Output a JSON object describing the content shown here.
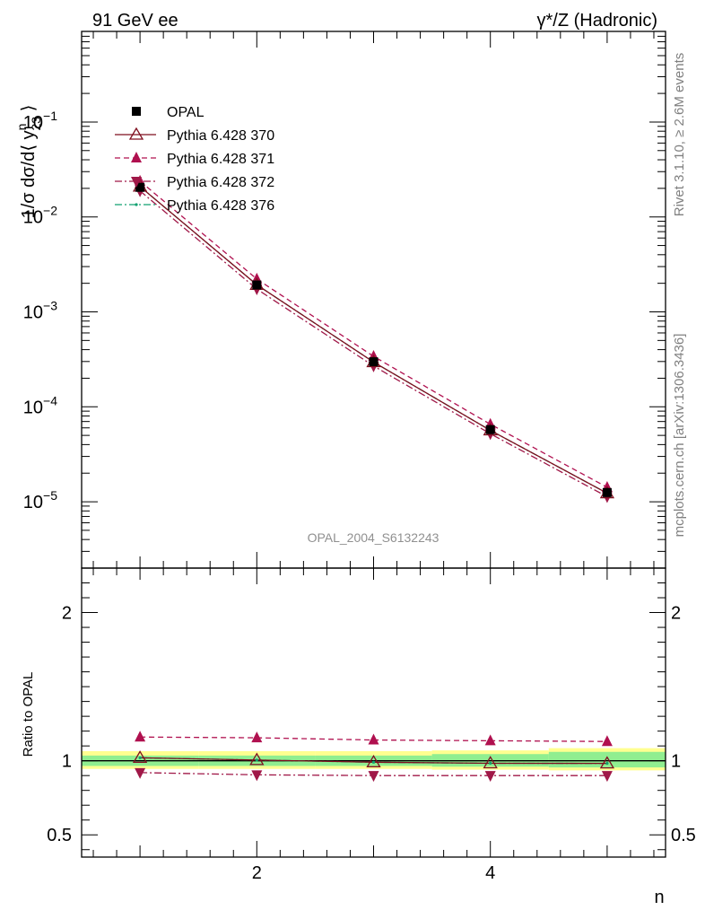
{
  "header": {
    "left_title": "91 GeV ee",
    "right_title": "γ*/Z (Hadronic)"
  },
  "side_labels": {
    "rivet": "Rivet 3.1.10, ≥ 2.6M events",
    "mcplots": "mcplots.cern.ch [arXiv:1306.3436]"
  },
  "watermark": "OPAL_2004_S6132243",
  "chart_data": [
    {
      "type": "line",
      "title": "",
      "ylabel": "1/σ dσ/d⟨ y_23^n ⟩",
      "xlabel": "",
      "yscale": "log",
      "ylim": [
        2e-06,
        0.9
      ],
      "xlim": [
        0.5,
        5.5
      ],
      "y_ticks": [
        {
          "value": 1e-05,
          "label": "10^-5"
        },
        {
          "value": 0.0001,
          "label": "10^-4"
        },
        {
          "value": 0.001,
          "label": "10^-3"
        },
        {
          "value": 0.01,
          "label": "10^-2"
        },
        {
          "value": 0.1,
          "label": "10^-1"
        }
      ],
      "legend_position": "top-left",
      "x": [
        1,
        2,
        3,
        4,
        5
      ],
      "series": [
        {
          "name": "OPAL",
          "color": "#000000",
          "marker": "square",
          "values": [
            0.0205,
            0.00192,
            0.000298,
            5.75e-05,
            1.25e-05
          ]
        },
        {
          "name": "Pythia 6.428 370",
          "color": "#7f0f1f",
          "marker": "triangle-open",
          "line": "solid",
          "values": [
            0.0209,
            0.00193,
            0.000296,
            5.65e-05,
            1.23e-05
          ]
        },
        {
          "name": "Pythia 6.428 371",
          "color": "#b0104f",
          "marker": "triangle-up",
          "line": "dashed",
          "values": [
            0.0238,
            0.00222,
            0.00034,
            6.55e-05,
            1.42e-05
          ]
        },
        {
          "name": "Pythia 6.428 372",
          "color": "#a01848",
          "marker": "triangle-down",
          "line": "dashdot",
          "values": [
            0.0188,
            0.00174,
            0.000269,
            5.2e-05,
            1.13e-05
          ]
        },
        {
          "name": "Pythia 6.428 376",
          "color": "#10a070",
          "marker": "dot",
          "line": "dashdot",
          "values": [
            0.0209,
            0.00193,
            0.000296,
            5.65e-05,
            1.23e-05
          ]
        }
      ]
    },
    {
      "type": "line",
      "title": "",
      "ylabel": "Ratio to OPAL",
      "xlabel": "n",
      "ylim": [
        0.35,
        2.3
      ],
      "xlim": [
        0.5,
        5.5
      ],
      "y_ticks": [
        {
          "value": 0.5,
          "label": "0.5"
        },
        {
          "value": 1,
          "label": "1"
        },
        {
          "value": 2,
          "label": "2"
        }
      ],
      "x_ticks": [
        {
          "value": 2,
          "label": "2"
        },
        {
          "value": 4,
          "label": "4"
        }
      ],
      "x": [
        1,
        2,
        3,
        4,
        5
      ],
      "uncertainty_band": {
        "inner_color": "#90ee90",
        "outer_color": "#ffff90",
        "bins": [
          {
            "lo": 0.5,
            "hi": 1.5,
            "inner": [
              0.965,
              1.035
            ],
            "outer": [
              0.945,
              1.065
            ]
          },
          {
            "lo": 1.5,
            "hi": 2.5,
            "inner": [
              0.965,
              1.035
            ],
            "outer": [
              0.945,
              1.065
            ]
          },
          {
            "lo": 2.5,
            "hi": 3.5,
            "inner": [
              0.965,
              1.035
            ],
            "outer": [
              0.945,
              1.065
            ]
          },
          {
            "lo": 3.5,
            "hi": 4.5,
            "inner": [
              0.96,
              1.045
            ],
            "outer": [
              0.94,
              1.07
            ]
          },
          {
            "lo": 4.5,
            "hi": 5.5,
            "inner": [
              0.955,
              1.06
            ],
            "outer": [
              0.935,
              1.085
            ]
          }
        ]
      },
      "series": [
        {
          "name": "Pythia 6.428 370",
          "color": "#7f0f1f",
          "marker": "triangle-open",
          "line": "solid",
          "values": [
            1.02,
            1.005,
            0.99,
            0.983,
            0.982
          ]
        },
        {
          "name": "Pythia 6.428 371",
          "color": "#b0104f",
          "marker": "triangle-up",
          "line": "dashed",
          "values": [
            1.16,
            1.155,
            1.14,
            1.135,
            1.13
          ]
        },
        {
          "name": "Pythia 6.428 372",
          "color": "#a01848",
          "marker": "triangle-down",
          "line": "dashdot",
          "values": [
            0.92,
            0.905,
            0.9,
            0.9,
            0.9
          ]
        },
        {
          "name": "Pythia 6.428 376",
          "color": "#10a070",
          "marker": "dot",
          "line": "dashdot",
          "values": [
            1.02,
            1.005,
            0.99,
            0.983,
            0.982
          ]
        }
      ]
    }
  ]
}
